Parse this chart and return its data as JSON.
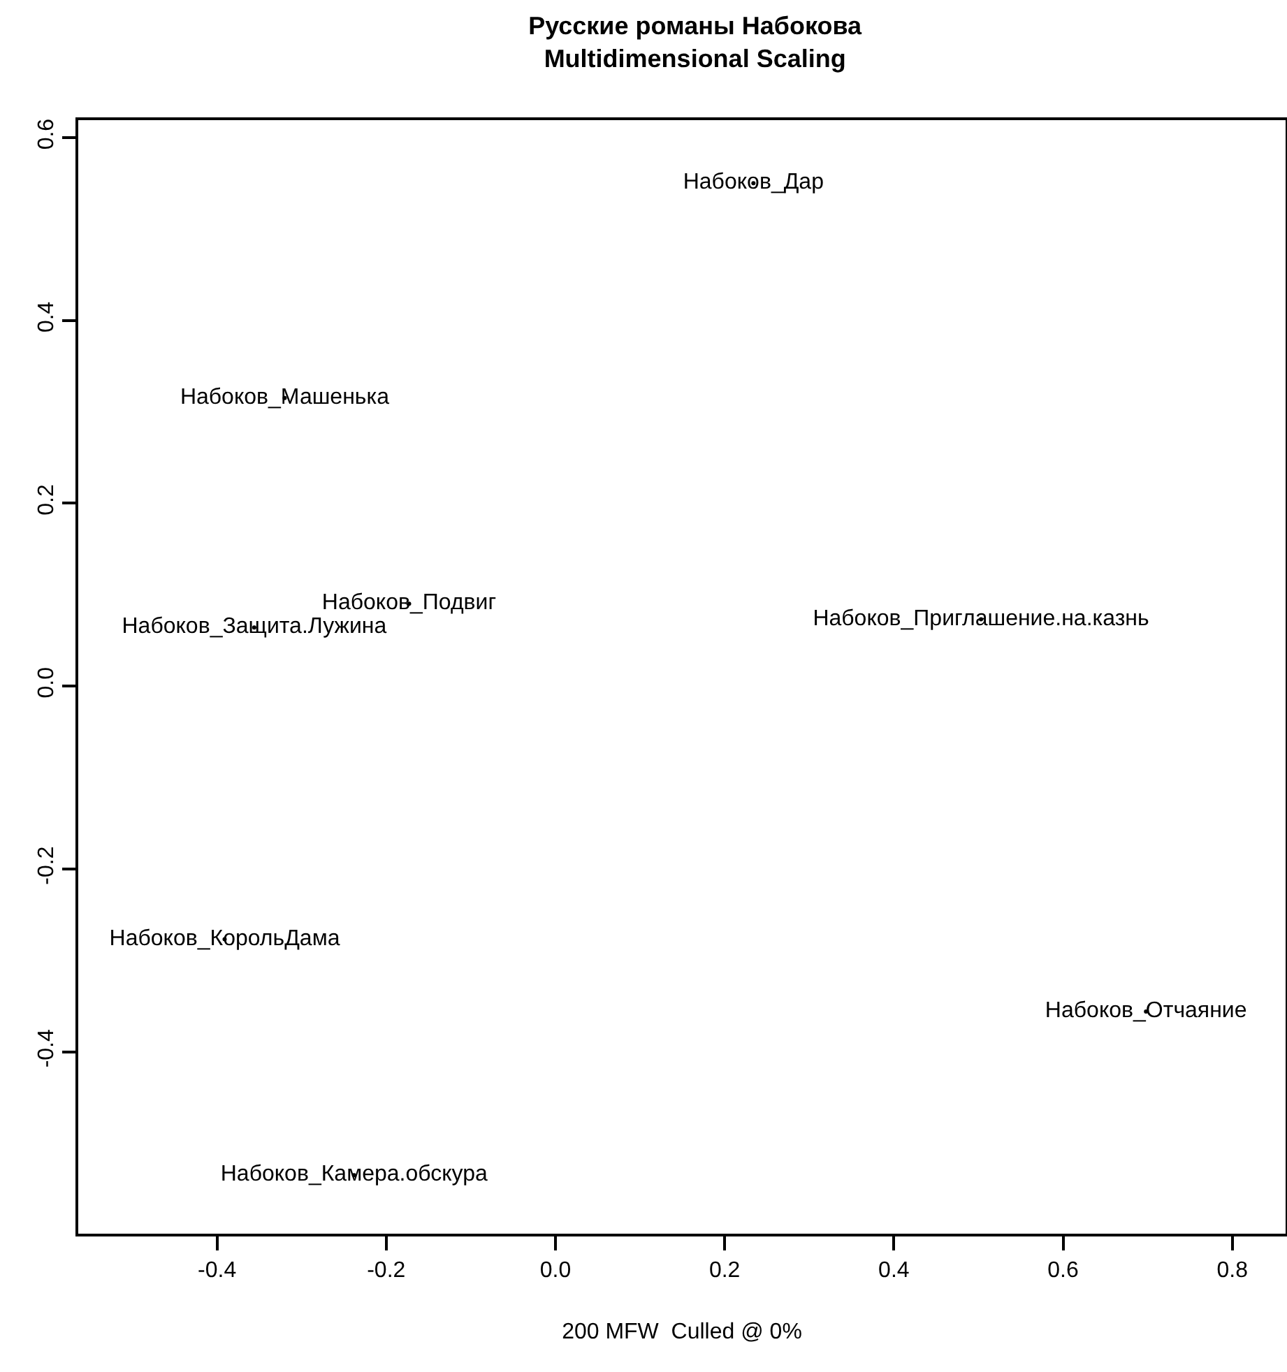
{
  "chart_data": {
    "type": "scatter",
    "title": "Русские романы Набокова\nMultidimensional Scaling",
    "xlabel": "200 MFW  Culled @ 0%",
    "x": [
      0.234,
      -0.32,
      -0.173,
      -0.356,
      0.503,
      -0.391,
      0.698,
      -0.238
    ],
    "values": [
      0.55,
      0.315,
      0.09,
      0.064,
      0.073,
      -0.277,
      -0.356,
      -0.535
    ],
    "value_labels": [
      "Набоков_Дар",
      "Набоков_Машенька",
      "Набоков_Подвиг",
      "Набоков_Защита.Лужина",
      "Набоков_Приглашение.на.казнь",
      "Набоков_КорольДама",
      "Набоков_Отчаяние",
      "Набоков_Камера.обскура"
    ],
    "color": "#000000",
    "marker": "circle",
    "xlim": [
      -0.564,
      0.863
    ],
    "xticks": [
      {
        "value": -0.4,
        "label": "-0.4"
      },
      {
        "value": -0.2,
        "label": "-0.2"
      },
      {
        "value": 0,
        "label": "0.0"
      },
      {
        "value": 0.2,
        "label": "0.2"
      },
      {
        "value": 0.4,
        "label": "0.4"
      },
      {
        "value": 0.6,
        "label": "0.6"
      },
      {
        "value": 0.8,
        "label": "0.8"
      }
    ],
    "ylim": [
      -0.599,
      0.619
    ],
    "yticks": [
      {
        "value": -0.4,
        "label": "-0.4"
      },
      {
        "value": -0.2,
        "label": "-0.2"
      },
      {
        "value": 0,
        "label": "0.0"
      },
      {
        "value": 0.2,
        "label": "0.2"
      },
      {
        "value": 0.4,
        "label": "0.4"
      },
      {
        "value": 0.6,
        "label": "0.6"
      }
    ],
    "grid": false,
    "legend": false
  }
}
